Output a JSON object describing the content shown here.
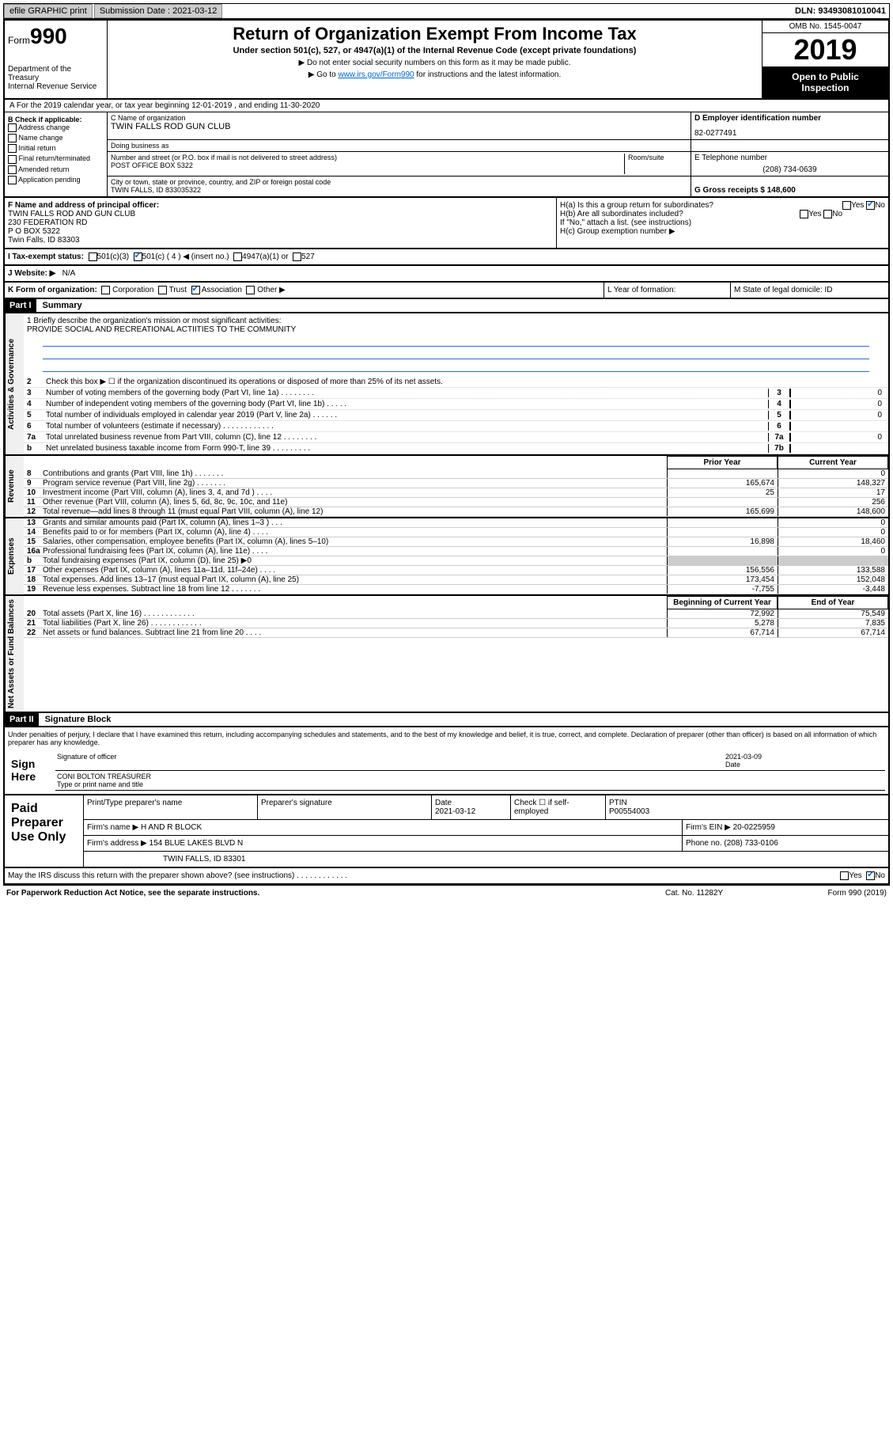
{
  "topbar": {
    "efile_label": "efile GRAPHIC print",
    "submission_label": "Submission Date : 2021-03-12",
    "dln": "DLN: 93493081010041"
  },
  "header": {
    "form_prefix": "Form",
    "form_number": "990",
    "dept": "Department of the Treasury\nInternal Revenue Service",
    "title": "Return of Organization Exempt From Income Tax",
    "subtitle": "Under section 501(c), 527, or 4947(a)(1) of the Internal Revenue Code (except private foundations)",
    "note1": "▶ Do not enter social security numbers on this form as it may be made public.",
    "note2": "▶ Go to ",
    "link": "www.irs.gov/Form990",
    "note3": " for instructions and the latest information.",
    "omb": "OMB No. 1545-0047",
    "year": "2019",
    "open_public": "Open to Public Inspection"
  },
  "row_a": "A For the 2019 calendar year, or tax year beginning 12-01-2019     , and ending 11-30-2020",
  "box_b": {
    "label": "B Check if applicable:",
    "opts": [
      "Address change",
      "Name change",
      "Initial return",
      "Final return/terminated",
      "Amended return",
      "Application pending"
    ]
  },
  "box_c": {
    "name_label": "C Name of organization",
    "name": "TWIN FALLS ROD GUN CLUB",
    "dba_label": "Doing business as",
    "addr_label": "Number and street (or P.O. box if mail is not delivered to street address)",
    "room_label": "Room/suite",
    "addr": "POST OFFICE BOX 5322",
    "city_label": "City or town, state or province, country, and ZIP or foreign postal code",
    "city": "TWIN FALLS, ID  833035322"
  },
  "box_d": {
    "label": "D Employer identification number",
    "value": "82-0277491"
  },
  "box_e": {
    "label": "E Telephone number",
    "value": "(208) 734-0639"
  },
  "box_g": {
    "label": "G Gross receipts $ 148,600"
  },
  "box_f": {
    "label": "F  Name and address of principal officer:",
    "lines": [
      "TWIN FALLS ROD AND GUN CLUB",
      "230 FEDERATION RD",
      "P O BOX 5322",
      "Twin Falls, ID  83303"
    ]
  },
  "box_h": {
    "a_label": "H(a)  Is this a group return for subordinates?",
    "a_yes": "Yes",
    "a_no": "No",
    "b_label": "H(b)  Are all subordinates included?",
    "b_yes": "Yes",
    "b_no": "No",
    "b_note": "If \"No,\" attach a list. (see instructions)",
    "c_label": "H(c)  Group exemption number ▶"
  },
  "status": {
    "label": "I   Tax-exempt status:",
    "opt1": "501(c)(3)",
    "opt2": "501(c) ( 4 ) ◀ (insert no.)",
    "opt3": "4947(a)(1) or",
    "opt4": "527"
  },
  "website": {
    "label": "J   Website: ▶",
    "value": "N/A"
  },
  "klm": {
    "k_label": "K Form of organization:",
    "k_opts": [
      "Corporation",
      "Trust",
      "Association",
      "Other ▶"
    ],
    "l_label": "L Year of formation:",
    "m_label": "M State of legal domicile: ID"
  },
  "part1": {
    "header": "Part I",
    "title": "Summary"
  },
  "mission": {
    "label": "1   Briefly describe the organization's mission or most significant activities:",
    "text": "PROVIDE SOCIAL AND RECREATIONAL ACTIITIES TO THE COMMUNITY"
  },
  "gov_lines": [
    {
      "num": "2",
      "text": "Check this box ▶ ☐  if the organization discontinued its operations or disposed of more than 25% of its net assets."
    },
    {
      "num": "3",
      "text": "Number of voting members of the governing body (Part VI, line 1a)  .  .  .  .  .  .  .  .",
      "box": "3",
      "val": "0"
    },
    {
      "num": "4",
      "text": "Number of independent voting members of the governing body (Part VI, line 1b)  .  .  .  .  .",
      "box": "4",
      "val": "0"
    },
    {
      "num": "5",
      "text": "Total number of individuals employed in calendar year 2019 (Part V, line 2a)  .  .  .  .  .  .",
      "box": "5",
      "val": "0"
    },
    {
      "num": "6",
      "text": "Total number of volunteers (estimate if necessary)   .  .  .  .  .  .  .  .  .  .  .  .",
      "box": "6",
      "val": ""
    },
    {
      "num": "7a",
      "text": "Total unrelated business revenue from Part VIII, column (C), line 12  .  .  .  .  .  .  .  .",
      "box": "7a",
      "val": "0"
    },
    {
      "num": "b",
      "text": "Net unrelated business taxable income from Form 990-T, line 39   .  .  .  .  .  .  .  .  .",
      "box": "7b",
      "val": ""
    }
  ],
  "col_headers": {
    "prior": "Prior Year",
    "current": "Current Year"
  },
  "revenue": [
    {
      "num": "8",
      "text": "Contributions and grants (Part VIII, line 1h)   .  .  .  .  .  .  .",
      "c1": "",
      "c2": "0"
    },
    {
      "num": "9",
      "text": "Program service revenue (Part VIII, line 2g)   .  .  .  .  .  .  .",
      "c1": "165,674",
      "c2": "148,327"
    },
    {
      "num": "10",
      "text": "Investment income (Part VIII, column (A), lines 3, 4, and 7d )   .  .  .  .",
      "c1": "25",
      "c2": "17"
    },
    {
      "num": "11",
      "text": "Other revenue (Part VIII, column (A), lines 5, 6d, 8c, 9c, 10c, and 11e)",
      "c1": "",
      "c2": "256"
    },
    {
      "num": "12",
      "text": "Total revenue—add lines 8 through 11 (must equal Part VIII, column (A), line 12)",
      "c1": "165,699",
      "c2": "148,600"
    }
  ],
  "expenses": [
    {
      "num": "13",
      "text": "Grants and similar amounts paid (Part IX, column (A), lines 1–3 )  .  .  .",
      "c1": "",
      "c2": "0"
    },
    {
      "num": "14",
      "text": "Benefits paid to or for members (Part IX, column (A), line 4)  .  .  .  .",
      "c1": "",
      "c2": "0"
    },
    {
      "num": "15",
      "text": "Salaries, other compensation, employee benefits (Part IX, column (A), lines 5–10)",
      "c1": "16,898",
      "c2": "18,460"
    },
    {
      "num": "16a",
      "text": "Professional fundraising fees (Part IX, column (A), line 11e)  .  .  .  .",
      "c1": "",
      "c2": "0"
    },
    {
      "num": "b",
      "text": "Total fundraising expenses (Part IX, column (D), line 25) ▶0",
      "c1": "gray",
      "c2": "gray"
    },
    {
      "num": "17",
      "text": "Other expenses (Part IX, column (A), lines 11a–11d, 11f–24e)  .  .  .  .",
      "c1": "156,556",
      "c2": "133,588"
    },
    {
      "num": "18",
      "text": "Total expenses. Add lines 13–17 (must equal Part IX, column (A), line 25)",
      "c1": "173,454",
      "c2": "152,048"
    },
    {
      "num": "19",
      "text": "Revenue less expenses. Subtract line 18 from line 12 .  .  .  .  .  .  .",
      "c1": "-7,755",
      "c2": "-3,448"
    }
  ],
  "net_headers": {
    "begin": "Beginning of Current Year",
    "end": "End of Year"
  },
  "net_assets": [
    {
      "num": "20",
      "text": "Total assets (Part X, line 16)  .  .  .  .  .  .  .  .  .  .  .  .",
      "c1": "72,992",
      "c2": "75,549"
    },
    {
      "num": "21",
      "text": "Total liabilities (Part X, line 26)  .  .  .  .  .  .  .  .  .  .  .  .",
      "c1": "5,278",
      "c2": "7,835"
    },
    {
      "num": "22",
      "text": "Net assets or fund balances. Subtract line 21 from line 20  .  .  .  .",
      "c1": "67,714",
      "c2": "67,714"
    }
  ],
  "part2": {
    "header": "Part II",
    "title": "Signature Block"
  },
  "sig_decl": "Under penalties of perjury, I declare that I have examined this return, including accompanying schedules and statements, and to the best of my knowledge and belief, it is true, correct, and complete. Declaration of preparer (other than officer) is based on all information of which preparer has any knowledge.",
  "sign_here": {
    "label": "Sign Here",
    "sig_officer": "Signature of officer",
    "date": "2021-03-09",
    "date_label": "Date",
    "name": "CONI BOLTON TREASURER",
    "name_label": "Type or print name and title"
  },
  "paid_prep": {
    "label": "Paid Preparer Use Only",
    "r1": {
      "c1": "Print/Type preparer's name",
      "c2": "Preparer's signature",
      "c3": "Date\n2021-03-12",
      "c4": "Check ☐ if self-employed",
      "c5": "PTIN\nP00554003"
    },
    "r2": {
      "c1": "Firm's name      ▶ H AND R BLOCK",
      "c2": "Firm's EIN ▶ 20-0225959"
    },
    "r3": {
      "c1": "Firm's address ▶ 154 BLUE LAKES BLVD N",
      "c2": "Phone no. (208) 733-0106"
    },
    "r4": {
      "c1": "TWIN FALLS, ID  83301"
    }
  },
  "discuss": "May the IRS discuss this return with the preparer shown above? (see instructions)  .  .  .  .  .  .  .  .  .  .  .  .",
  "discuss_yes": "Yes",
  "discuss_no": "No",
  "footer": {
    "l": "For Paperwork Reduction Act Notice, see the separate instructions.",
    "m": "Cat. No. 11282Y",
    "r": "Form 990 (2019)"
  },
  "side_labels": {
    "gov": "Activities & Governance",
    "rev": "Revenue",
    "exp": "Expenses",
    "net": "Net Assets or Fund Balances"
  }
}
